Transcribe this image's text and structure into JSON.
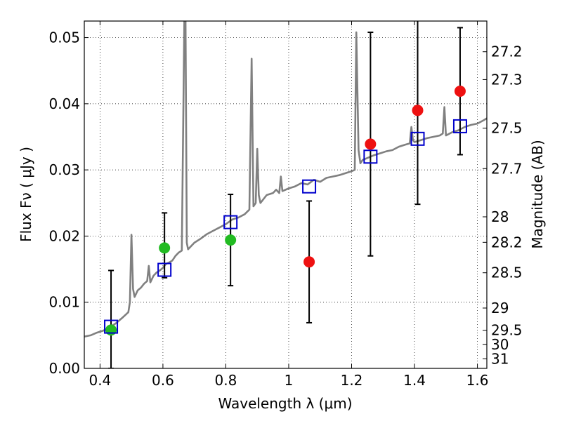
{
  "chart_data": {
    "type": "scatter",
    "xlabel": "Wavelength  λ (μm)",
    "ylabel": "Flux  Fν  ( μJy )",
    "y2label": "Magnitude (AB)",
    "xlim": [
      0.35,
      1.63
    ],
    "ylim": [
      0.0,
      0.0525
    ],
    "x_ticks": [
      0.4,
      0.6,
      0.8,
      1.0,
      1.2,
      1.4,
      1.6
    ],
    "x_tick_labels": [
      "0.4",
      "0.6",
      "0.8",
      "1",
      "1.2",
      "1.4",
      "1.6"
    ],
    "y_ticks": [
      0.0,
      0.01,
      0.02,
      0.03,
      0.04,
      0.05
    ],
    "y_tick_labels": [
      "0.00",
      "0.01",
      "0.02",
      "0.03",
      "0.04",
      "0.05"
    ],
    "y2_ticks": [
      {
        "label": "27.2",
        "mag": 27.2
      },
      {
        "label": "27.3",
        "mag": 27.3
      },
      {
        "label": "27.5",
        "mag": 27.5
      },
      {
        "label": "27.7",
        "mag": 27.7
      },
      {
        "label": "28",
        "mag": 28.0
      },
      {
        "label": "28.2",
        "mag": 28.2
      },
      {
        "label": "28.5",
        "mag": 28.5
      },
      {
        "label": "29",
        "mag": 29.0
      },
      {
        "label": "29.5",
        "mag": 29.5
      },
      {
        "label": "30",
        "mag": 30.0
      },
      {
        "label": "31",
        "mag": 31.0
      }
    ],
    "grid": true,
    "colors": {
      "spectrum": "#808080",
      "detected": "#22bb22",
      "upper": "#ee1111",
      "model": "#0000cc",
      "errorbar": "#000000"
    },
    "spectrum": {
      "x": [
        0.35,
        0.37,
        0.39,
        0.41,
        0.43,
        0.45,
        0.47,
        0.49,
        0.495,
        0.5,
        0.505,
        0.51,
        0.52,
        0.53,
        0.54,
        0.55,
        0.555,
        0.56,
        0.57,
        0.58,
        0.59,
        0.6,
        0.61,
        0.62,
        0.63,
        0.64,
        0.65,
        0.66,
        0.668,
        0.672,
        0.676,
        0.68,
        0.7,
        0.72,
        0.74,
        0.76,
        0.78,
        0.8,
        0.82,
        0.84,
        0.86,
        0.875,
        0.882,
        0.888,
        0.895,
        0.9,
        0.905,
        0.91,
        0.93,
        0.95,
        0.96,
        0.97,
        0.975,
        0.98,
        1.0,
        1.02,
        1.04,
        1.06,
        1.08,
        1.1,
        1.12,
        1.14,
        1.16,
        1.18,
        1.2,
        1.21,
        1.215,
        1.222,
        1.228,
        1.235,
        1.25,
        1.27,
        1.29,
        1.31,
        1.33,
        1.35,
        1.37,
        1.385,
        1.39,
        1.395,
        1.4,
        1.42,
        1.44,
        1.46,
        1.48,
        1.49,
        1.495,
        1.5,
        1.52,
        1.54,
        1.56,
        1.58,
        1.6,
        1.62,
        1.63
      ],
      "y": [
        0.0048,
        0.005,
        0.0054,
        0.0057,
        0.0062,
        0.0068,
        0.0076,
        0.0085,
        0.01,
        0.0202,
        0.012,
        0.0108,
        0.0118,
        0.0122,
        0.0128,
        0.0132,
        0.0155,
        0.013,
        0.014,
        0.0145,
        0.0148,
        0.0152,
        0.0158,
        0.016,
        0.0163,
        0.017,
        0.0175,
        0.0178,
        0.0525,
        0.0525,
        0.019,
        0.018,
        0.019,
        0.0196,
        0.0203,
        0.0208,
        0.0213,
        0.0218,
        0.0225,
        0.0228,
        0.0233,
        0.024,
        0.0468,
        0.0245,
        0.025,
        0.0332,
        0.0262,
        0.025,
        0.0262,
        0.0265,
        0.027,
        0.0265,
        0.029,
        0.0268,
        0.0272,
        0.0275,
        0.028,
        0.0278,
        0.0285,
        0.0282,
        0.0288,
        0.029,
        0.0292,
        0.0295,
        0.0298,
        0.03,
        0.0508,
        0.033,
        0.031,
        0.0315,
        0.0318,
        0.0322,
        0.0325,
        0.0328,
        0.033,
        0.0335,
        0.0338,
        0.034,
        0.0365,
        0.0345,
        0.0342,
        0.0345,
        0.0348,
        0.035,
        0.0352,
        0.0355,
        0.0395,
        0.0352,
        0.0357,
        0.036,
        0.0365,
        0.0368,
        0.037,
        0.0375,
        0.0378
      ]
    },
    "series": [
      {
        "marker": "circle-green",
        "points": [
          {
            "x": 0.435,
            "y": 0.0058,
            "err_lo": 0.0058,
            "err_hi": 0.009
          },
          {
            "x": 0.605,
            "y": 0.0182,
            "err_lo": 0.0045,
            "err_hi": 0.0053
          },
          {
            "x": 0.815,
            "y": 0.0194,
            "err_lo": 0.0069,
            "err_hi": 0.0069
          }
        ]
      },
      {
        "marker": "circle-red",
        "points": [
          {
            "x": 1.065,
            "y": 0.0161,
            "err_lo": 0.0092,
            "err_hi": 0.0092
          },
          {
            "x": 1.26,
            "y": 0.0339,
            "err_lo": 0.0169,
            "err_hi": 0.0169
          },
          {
            "x": 1.41,
            "y": 0.039,
            "err_lo": 0.0142,
            "err_hi": 0.0142
          },
          {
            "x": 1.545,
            "y": 0.0419,
            "err_lo": 0.0096,
            "err_hi": 0.0096
          }
        ]
      },
      {
        "marker": "square-blue",
        "points": [
          {
            "x": 0.435,
            "y": 0.0063
          },
          {
            "x": 0.605,
            "y": 0.0149
          },
          {
            "x": 0.815,
            "y": 0.0221
          },
          {
            "x": 1.065,
            "y": 0.0275
          },
          {
            "x": 1.26,
            "y": 0.032
          },
          {
            "x": 1.41,
            "y": 0.0347
          },
          {
            "x": 1.545,
            "y": 0.0366
          }
        ]
      }
    ]
  }
}
